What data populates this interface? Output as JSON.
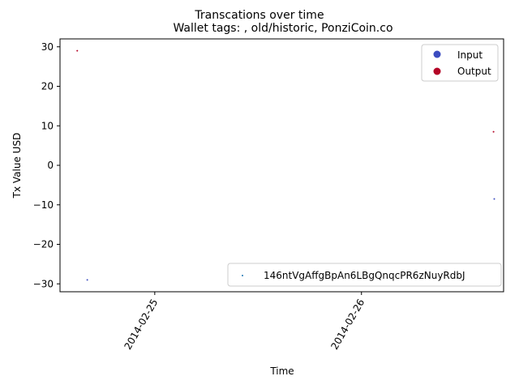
{
  "chart_data": {
    "type": "scatter",
    "title": "Transcations over time",
    "subtitle": "Wallet tags: , old/historic, PonziCoin.co",
    "xlabel": "Time",
    "ylabel": "Tx Value USD",
    "xlim": [
      "2014-02-24T13:00",
      "2014-02-26T16:30"
    ],
    "ylim": [
      -32,
      32
    ],
    "x_ticks": [
      {
        "value": "2014-02-25T00:00",
        "label": "2014-02-25"
      },
      {
        "value": "2014-02-26T00:00",
        "label": "2014-02-26"
      }
    ],
    "y_ticks": [
      {
        "value": 30,
        "label": "30"
      },
      {
        "value": 20,
        "label": "20"
      },
      {
        "value": 10,
        "label": "10"
      },
      {
        "value": 0,
        "label": "0"
      },
      {
        "value": -10,
        "label": "−10"
      },
      {
        "value": -20,
        "label": "−20"
      },
      {
        "value": -30,
        "label": "−30"
      }
    ],
    "grid": false,
    "series": [
      {
        "name": "Input",
        "color": "#3b4cc0",
        "points": [
          {
            "x": "2014-02-24T16:10",
            "y": -29
          },
          {
            "x": "2014-02-26T15:25",
            "y": -8.5
          }
        ]
      },
      {
        "name": "Output",
        "color": "#b40426",
        "points": [
          {
            "x": "2014-02-24T15:00",
            "y": 29
          },
          {
            "x": "2014-02-26T15:20",
            "y": 8.5
          }
        ]
      }
    ],
    "legend": {
      "placement": "top-right",
      "entries": [
        {
          "label": "Input",
          "color": "#3b4cc0"
        },
        {
          "label": "Output",
          "color": "#b40426"
        }
      ]
    },
    "legend2": {
      "placement": "lower-right",
      "entries": [
        {
          "label": "146ntVgAffgBpAn6LBgQnqcPR6zNuyRdbJ",
          "color": "#1f77b4"
        }
      ]
    }
  }
}
